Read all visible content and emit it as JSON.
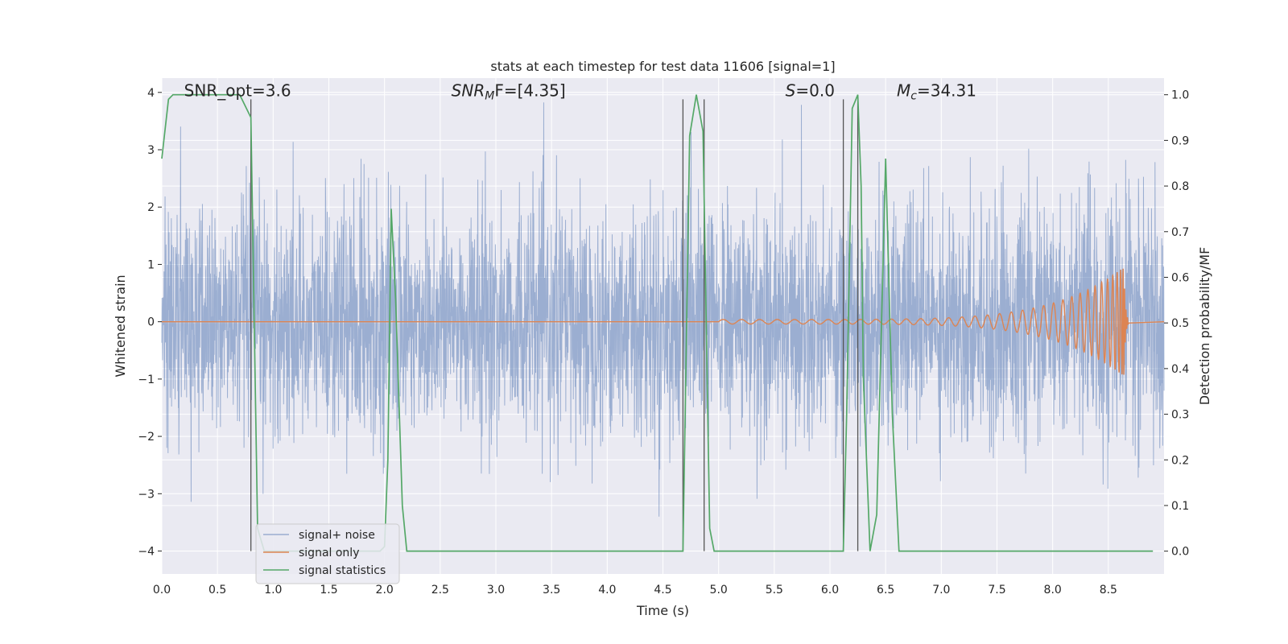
{
  "chart_data": {
    "type": "line",
    "title": "stats at each timestep for test data 11606 [signal=1]",
    "xlabel": "Time (s)",
    "ylabel": "Whitened strain",
    "y2label": "Detection probability/MF",
    "xlim": [
      0.0,
      9.0
    ],
    "ylim": [
      -4.4,
      4.25
    ],
    "y2lim": [
      -0.05,
      1.0365
    ],
    "xticks": [
      0.0,
      0.5,
      1.0,
      1.5,
      2.0,
      2.5,
      3.0,
      3.5,
      4.0,
      4.5,
      5.0,
      5.5,
      6.0,
      6.5,
      7.0,
      7.5,
      8.0,
      8.5
    ],
    "xtick_labels": [
      "0.0",
      "0.5",
      "1.0",
      "1.5",
      "2.0",
      "2.5",
      "3.0",
      "3.5",
      "4.0",
      "4.5",
      "5.0",
      "5.5",
      "6.0",
      "6.5",
      "7.0",
      "7.5",
      "8.0",
      "8.5"
    ],
    "yticks": [
      -4,
      -3,
      -2,
      -1,
      0,
      1,
      2,
      3,
      4
    ],
    "ytick_labels": [
      "−4",
      "−3",
      "−2",
      "−1",
      "0",
      "1",
      "2",
      "3",
      "4"
    ],
    "y2ticks": [
      0.0,
      0.1,
      0.2,
      0.3,
      0.4,
      0.5,
      0.6,
      0.7,
      0.8,
      0.9,
      1.0
    ],
    "y2tick_labels": [
      "0.0",
      "0.1",
      "0.2",
      "0.3",
      "0.4",
      "0.5",
      "0.6",
      "0.7",
      "0.8",
      "0.9",
      "1.0"
    ],
    "grid": true,
    "legend_position": "lower-left",
    "annotations": [
      {
        "id": "snr-opt",
        "text": "SNR_opt=3.6",
        "x": 0.2,
        "y": 4.03,
        "math": false
      },
      {
        "id": "snr-mf",
        "main": "SNR",
        "sub": "M",
        "rest": "F=[4.35]",
        "x": 2.6,
        "y": 4.03,
        "math": true
      },
      {
        "id": "s-value",
        "main": "S",
        "sub": "",
        "rest": "=0.0",
        "x": 5.6,
        "y": 4.03,
        "math": true
      },
      {
        "id": "chirp-mass",
        "main": "M",
        "sub": "c",
        "rest": "=34.31",
        "x": 6.6,
        "y": 4.03,
        "math": true
      }
    ],
    "vlines": [
      0.8,
      4.68,
      4.87,
      6.12,
      6.25
    ],
    "series": [
      {
        "name": "signal+ noise",
        "color": "#4c72b0",
        "alpha": 0.5,
        "axis": "left",
        "style": "dense-noise",
        "n_samples": 4000,
        "sigma": 1.0,
        "note_extremes": {
          "max": 4.0,
          "min": -4.0
        }
      },
      {
        "name": "signal only",
        "color": "#dd8452",
        "axis": "left",
        "style": "chirp",
        "start": 5.0,
        "merger": 8.64,
        "peak_amplitude": 0.95,
        "end": 8.68
      },
      {
        "name": "signal statistics",
        "color": "#55a868",
        "axis": "right",
        "style": "line",
        "x": [
          0.0,
          0.06,
          0.1,
          0.2,
          0.3,
          0.4,
          0.5,
          0.6,
          0.7,
          0.8,
          0.86,
          0.92,
          0.98,
          1.0,
          1.06,
          1.9,
          1.96,
          2.0,
          2.03,
          2.06,
          2.1,
          2.16,
          2.2,
          2.26,
          2.3,
          4.6,
          4.68,
          4.74,
          4.8,
          4.86,
          4.92,
          4.96,
          5.0,
          6.1,
          6.12,
          6.15,
          6.2,
          6.25,
          6.28,
          6.3,
          6.36,
          6.42,
          6.5,
          6.56,
          6.62,
          6.7,
          7.0,
          8.9
        ],
        "y": [
          0.86,
          0.99,
          1.0,
          1.0,
          1.0,
          1.0,
          1.0,
          1.0,
          1.0,
          0.95,
          0.05,
          0.0,
          0.0,
          0.0,
          0.0,
          0.0,
          0.0,
          0.01,
          0.2,
          0.75,
          0.55,
          0.1,
          0.0,
          0.0,
          0.0,
          0.0,
          0.0,
          0.91,
          1.0,
          0.92,
          0.05,
          0.0,
          0.0,
          0.0,
          0.0,
          0.3,
          0.97,
          1.0,
          0.8,
          0.38,
          0.0,
          0.08,
          0.86,
          0.3,
          0.0,
          0.0,
          0.0,
          0.0
        ]
      }
    ]
  }
}
